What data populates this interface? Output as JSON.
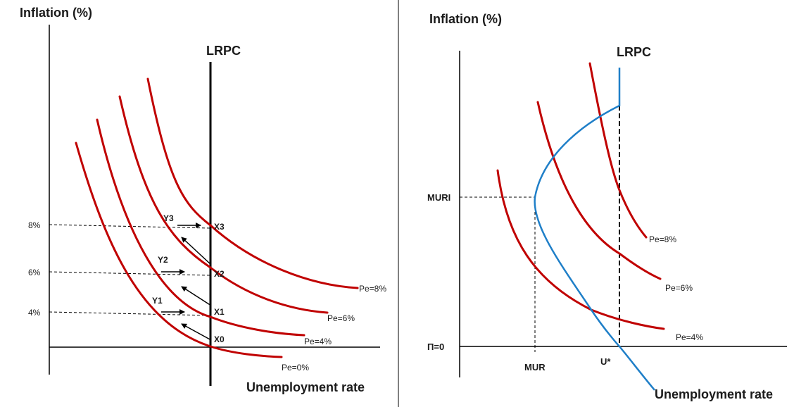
{
  "left_panel": {
    "y_axis_title": "Inflation (%)",
    "x_axis_title": "Unemployment rate",
    "lrpc_label": "LRPC",
    "y_ticks": [
      "8%",
      "6%",
      "4%"
    ],
    "points": [
      "X0",
      "X1",
      "X2",
      "X3",
      "Y1",
      "Y2",
      "Y3"
    ],
    "curves": [
      "Pe=0%",
      "Pe=4%",
      "Pe=6%",
      "Pe=8%"
    ]
  },
  "right_panel": {
    "y_axis_title": "Inflation (%)",
    "x_axis_title": "Unemployment rate",
    "lrpc_label": "LRPC",
    "y_ticks": [
      "MURI",
      "Π=0"
    ],
    "x_ticks": [
      "MUR",
      "U*"
    ],
    "curves": [
      "Pe=8%",
      "Pe=6%",
      "Pe=4%"
    ]
  },
  "colors": {
    "curve": "#c00000",
    "lrpc_right": "#1f7fc8",
    "axis": "#000000"
  }
}
